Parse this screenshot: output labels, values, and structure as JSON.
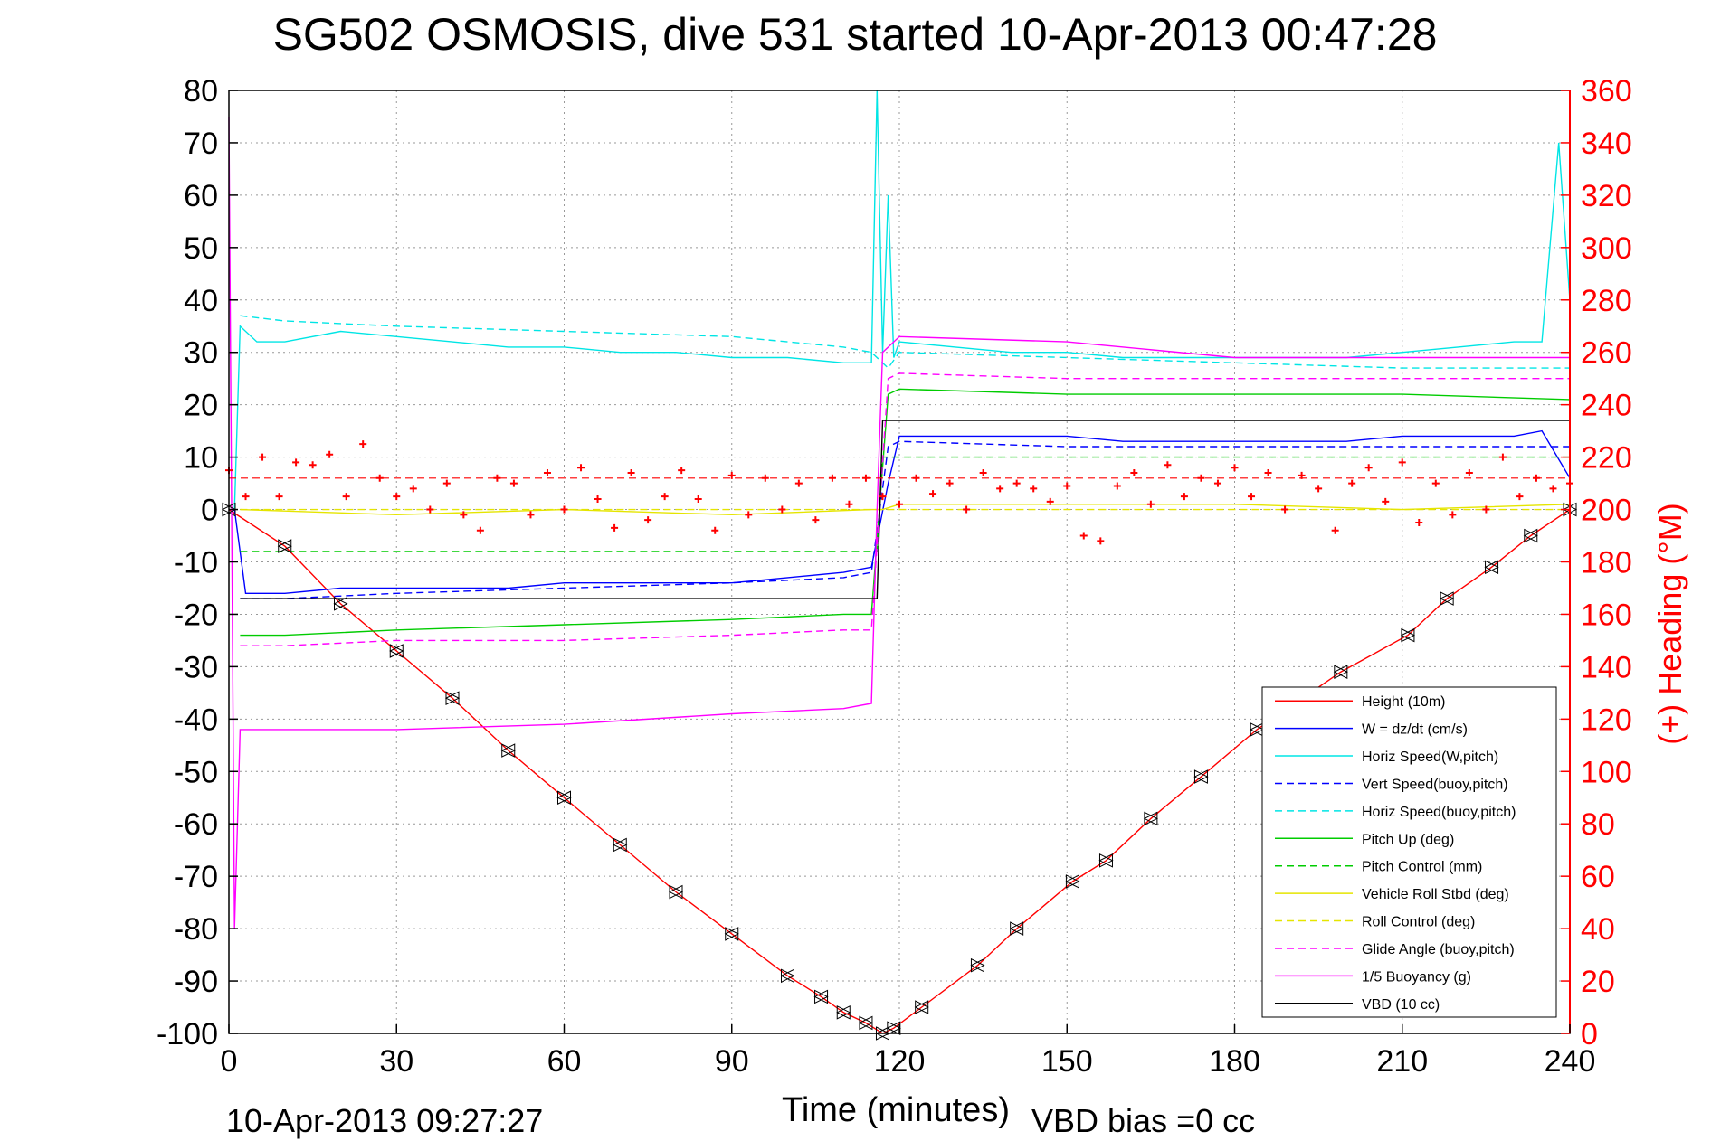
{
  "chart_data": {
    "type": "line",
    "title": "SG502 OSMOSIS, dive 531 started 10-Apr-2013 00:47:28",
    "xlabel": "Time (minutes)",
    "ylabel": "",
    "ylabel_right": "(+) Heading (°M)",
    "xlim": [
      0,
      240
    ],
    "ylim": [
      -100,
      80
    ],
    "ylim_right": [
      0,
      360
    ],
    "x_ticks": [
      "0",
      "30",
      "60",
      "90",
      "120",
      "150",
      "180",
      "210",
      "240"
    ],
    "y_ticks": [
      "80",
      "70",
      "60",
      "50",
      "40",
      "30",
      "20",
      "10",
      "0",
      "-10",
      "-20",
      "-30",
      "-40",
      "-50",
      "-60",
      "-70",
      "-80",
      "-90",
      "-100"
    ],
    "y_ticks_right": [
      "360",
      "340",
      "320",
      "300",
      "280",
      "260",
      "240",
      "220",
      "200",
      "180",
      "160",
      "140",
      "120",
      "100",
      "80",
      "60",
      "40",
      "20",
      "0"
    ],
    "grid": true,
    "legend_position": "bottom-right",
    "footer_left": "10-Apr-2013 09:27:27",
    "footer_right": "VBD bias =0 cc",
    "series": [
      {
        "name": "Height (10m)",
        "color": "#ff0000",
        "style": "solid",
        "x": [
          0,
          10,
          20,
          30,
          40,
          50,
          60,
          70,
          80,
          90,
          100,
          106,
          110,
          114,
          117,
          119,
          124,
          134,
          141,
          151,
          157,
          165,
          174,
          184,
          199,
          211,
          218,
          226,
          233,
          240
        ],
        "y": [
          0,
          -7,
          -18,
          -27,
          -36,
          -46,
          -55,
          -64,
          -73,
          -81,
          -89,
          -93,
          -96,
          -98,
          -100,
          -99,
          -95,
          -87,
          -80,
          -71,
          -67,
          -59,
          -51,
          -42,
          -31,
          -24,
          -17,
          -11,
          -5,
          0
        ]
      },
      {
        "name": "W = dz/dt (cm/s)",
        "color": "#0000ff",
        "style": "solid",
        "x": [
          1,
          3,
          10,
          20,
          30,
          40,
          50,
          60,
          70,
          80,
          90,
          100,
          110,
          115,
          118,
          120,
          130,
          140,
          150,
          160,
          170,
          180,
          190,
          200,
          210,
          220,
          230,
          235,
          240
        ],
        "y": [
          0,
          -16,
          -16,
          -15,
          -15,
          -15,
          -15,
          -14,
          -14,
          -14,
          -14,
          -13,
          -12,
          -11,
          5,
          14,
          14,
          14,
          14,
          13,
          13,
          13,
          13,
          13,
          14,
          14,
          14,
          15,
          6
        ]
      },
      {
        "name": "Horiz Speed(W,pitch)",
        "color": "#00e5e5",
        "style": "solid",
        "x": [
          1,
          2,
          5,
          10,
          20,
          30,
          40,
          50,
          60,
          70,
          80,
          90,
          100,
          110,
          115,
          116,
          117,
          118,
          119,
          120,
          130,
          140,
          150,
          160,
          170,
          180,
          190,
          200,
          210,
          220,
          230,
          235,
          238,
          240
        ],
        "y": [
          0,
          35,
          32,
          32,
          34,
          33,
          32,
          31,
          31,
          30,
          30,
          29,
          29,
          28,
          28,
          80,
          30,
          60,
          29,
          32,
          31,
          30,
          30,
          29,
          29,
          29,
          29,
          29,
          30,
          31,
          32,
          32,
          70,
          40
        ]
      },
      {
        "name": "Vert Speed(buoy,pitch)",
        "color": "#0000ff",
        "style": "dashed",
        "x": [
          2,
          10,
          30,
          60,
          90,
          110,
          115,
          118,
          120,
          150,
          180,
          210,
          240
        ],
        "y": [
          -17,
          -17,
          -16,
          -15,
          -14,
          -13,
          -12,
          12,
          13,
          12,
          12,
          12,
          12
        ]
      },
      {
        "name": "Horiz Speed(buoy,pitch)",
        "color": "#00e5e5",
        "style": "dashed",
        "x": [
          2,
          10,
          30,
          60,
          90,
          110,
          115,
          118,
          120,
          150,
          180,
          210,
          240
        ],
        "y": [
          37,
          36,
          35,
          34,
          33,
          31,
          30,
          27,
          30,
          29,
          28,
          27,
          27
        ]
      },
      {
        "name": "Pitch Up (deg)",
        "color": "#00cc00",
        "style": "solid",
        "x": [
          2,
          10,
          30,
          60,
          90,
          110,
          115,
          118,
          120,
          150,
          180,
          210,
          240
        ],
        "y": [
          -24,
          -24,
          -23,
          -22,
          -21,
          -20,
          -20,
          22,
          23,
          22,
          22,
          22,
          21
        ]
      },
      {
        "name": "Pitch Control (mm)",
        "color": "#00cc00",
        "style": "dashed",
        "x": [
          2,
          116,
          117,
          240
        ],
        "y": [
          -8,
          -8,
          10,
          10
        ]
      },
      {
        "name": "Vehicle Roll Stbd (deg)",
        "color": "#e5e500",
        "style": "solid",
        "x": [
          2,
          30,
          60,
          90,
          115,
          117,
          120,
          150,
          180,
          210,
          240
        ],
        "y": [
          0,
          -1,
          0,
          -1,
          0,
          0,
          1,
          1,
          1,
          0,
          1
        ]
      },
      {
        "name": "Roll Control (deg)",
        "color": "#e5e500",
        "style": "dashed",
        "x": [
          2,
          240
        ],
        "y": [
          0,
          0
        ]
      },
      {
        "name": "Glide Angle (buoy,pitch)",
        "color": "#ff00ff",
        "style": "dashed",
        "x": [
          2,
          10,
          30,
          60,
          90,
          110,
          115,
          118,
          120,
          150,
          180,
          210,
          240
        ],
        "y": [
          -26,
          -26,
          -25,
          -25,
          -24,
          -23,
          -23,
          25,
          26,
          25,
          25,
          25,
          25
        ]
      },
      {
        "name": "1/5 Buoyancy (g)",
        "color": "#ff00ff",
        "style": "solid",
        "x": [
          0,
          1,
          2,
          30,
          60,
          90,
          110,
          115,
          116,
          117,
          120,
          150,
          180,
          210,
          240
        ],
        "y": [
          75,
          -80,
          -42,
          -42,
          -41,
          -39,
          -38,
          -37,
          0,
          30,
          33,
          32,
          29,
          29,
          29
        ]
      },
      {
        "name": "VBD (10 cc)",
        "color": "#000000",
        "style": "solid",
        "x": [
          2,
          116,
          117,
          240
        ],
        "y": [
          -17,
          -17,
          17,
          17
        ]
      }
    ],
    "heading_series": {
      "name": "Heading",
      "color": "#ff0000",
      "marker": "+",
      "x": [
        0,
        3,
        6,
        9,
        12,
        15,
        18,
        21,
        24,
        27,
        30,
        33,
        36,
        39,
        42,
        45,
        48,
        51,
        54,
        57,
        60,
        63,
        66,
        69,
        72,
        75,
        78,
        81,
        84,
        87,
        90,
        93,
        96,
        99,
        102,
        105,
        108,
        111,
        114,
        117,
        120,
        123,
        126,
        129,
        132,
        135,
        138,
        141,
        144,
        147,
        150,
        153,
        156,
        159,
        162,
        165,
        168,
        171,
        174,
        177,
        180,
        183,
        186,
        189,
        192,
        195,
        198,
        201,
        204,
        207,
        210,
        213,
        216,
        219,
        222,
        225,
        228,
        231,
        234,
        237,
        240
      ],
      "y": [
        215,
        205,
        220,
        205,
        218,
        217,
        221,
        205,
        225,
        212,
        205,
        208,
        200,
        210,
        198,
        192,
        212,
        210,
        198,
        214,
        200,
        216,
        204,
        193,
        214,
        196,
        205,
        215,
        204,
        192,
        213,
        198,
        212,
        200,
        210,
        196,
        212,
        202,
        212,
        205,
        202,
        212,
        206,
        210,
        200,
        214,
        208,
        210,
        208,
        203,
        209,
        190,
        188,
        209,
        214,
        202,
        217,
        205,
        212,
        210,
        216,
        205,
        214,
        200,
        213,
        208,
        192,
        210,
        216,
        203,
        218,
        195,
        210,
        198,
        214,
        200,
        220,
        205,
        212,
        208,
        210
      ]
    },
    "heading_mean": 212
  }
}
